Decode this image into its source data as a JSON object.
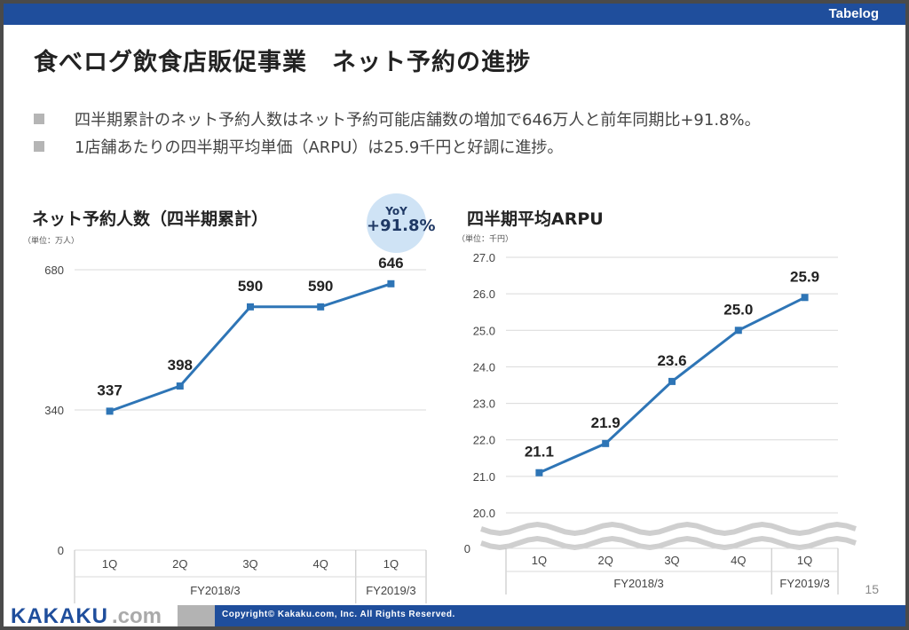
{
  "header": {
    "brand": "Tabelog"
  },
  "title": "食べログ飲食店販促事業　ネット予約の進捗",
  "bullets": [
    "四半期累計のネット予約人数はネット予約可能店舗数の増加で646万人と前年同期比+91.8%。",
    "1店舗あたりの四半期平均単価（ARPU）は25.9千円と好調に進捗。"
  ],
  "colors": {
    "brand_blue": "#1f4e9c",
    "series": "#2e75b6",
    "yoy_bubble": "#cfe3f5"
  },
  "chart_data": [
    {
      "type": "line",
      "title": "ネット予約人数（四半期累計）",
      "unit": "（単位：万人）",
      "categories": [
        "1Q",
        "2Q",
        "3Q",
        "4Q",
        "1Q"
      ],
      "groups": [
        {
          "label": "FY2018/3",
          "categories": [
            "1Q",
            "2Q",
            "3Q",
            "4Q"
          ]
        },
        {
          "label": "FY2019/3",
          "categories": [
            "1Q"
          ]
        }
      ],
      "values": [
        337,
        398,
        590,
        590,
        646
      ],
      "data_labels": [
        "337",
        "398",
        "590",
        "590",
        "646"
      ],
      "yticks": [
        "0",
        "340",
        "680"
      ],
      "ylim": [
        0,
        680
      ],
      "yoy": {
        "label": "YoY",
        "value": "+91.8%"
      }
    },
    {
      "type": "line",
      "title": "四半期平均ARPU",
      "unit": "（単位：千円）",
      "categories": [
        "1Q",
        "2Q",
        "3Q",
        "4Q",
        "1Q"
      ],
      "groups": [
        {
          "label": "FY2018/3",
          "categories": [
            "1Q",
            "2Q",
            "3Q",
            "4Q"
          ]
        },
        {
          "label": "FY2019/3",
          "categories": [
            "1Q"
          ]
        }
      ],
      "values": [
        21.1,
        21.9,
        23.6,
        25.0,
        25.9
      ],
      "data_labels": [
        "21.1",
        "21.9",
        "23.6",
        "25.0",
        "25.9"
      ],
      "yticks": [
        "20.0",
        "21.0",
        "22.0",
        "23.0",
        "24.0",
        "25.0",
        "26.0",
        "27.0"
      ],
      "ylim": [
        20,
        27
      ],
      "axis_break": true,
      "zero_label": "0"
    }
  ],
  "page_number": "15",
  "footer": {
    "logo": "KAKAKU",
    "logo_suffix": ".com",
    "copyright": "Copyright© Kakaku.com, Inc. All Rights Reserved."
  }
}
